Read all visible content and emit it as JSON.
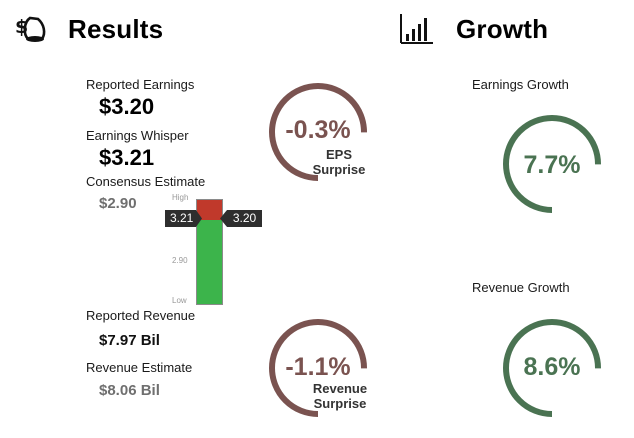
{
  "results": {
    "icon": "money-bag-icon",
    "title": "Results",
    "reported_earnings_label": "Reported Earnings",
    "reported_earnings_value": "$3.20",
    "whisper_label": "Earnings Whisper",
    "whisper_value": "$3.21",
    "consensus_label": "Consensus Estimate",
    "consensus_value": "$2.90",
    "reported_revenue_label": "Reported Revenue",
    "reported_revenue_value": "$7.97 Bil",
    "revenue_estimate_label": "Revenue Estimate",
    "revenue_estimate_value": "$8.06 Bil"
  },
  "meter": {
    "high_label": "High",
    "mid_label": "2.90",
    "low_label": "Low",
    "left_tag": "3.21",
    "right_tag": "3.20",
    "top_color": "#c0392b",
    "bottom_color": "#3cb44b",
    "red_fraction": 0.19
  },
  "eps_ring": {
    "value": "-0.3%",
    "caption_line1": "EPS",
    "caption_line2": "Surprise",
    "color": "#7a5350",
    "fill_fraction": 0.75
  },
  "revenue_ring": {
    "value": "-1.1%",
    "caption_line1": "Revenue",
    "caption_line2": "Surprise",
    "color": "#7a5350",
    "fill_fraction": 0.75
  },
  "growth": {
    "icon": "bar-chart-icon",
    "title": "Growth",
    "earnings_label": "Earnings Growth",
    "earnings_value": "7.7%",
    "revenue_label": "Revenue Growth",
    "revenue_value": "8.6%",
    "color": "#4a7352",
    "fill_fraction": 0.75
  }
}
